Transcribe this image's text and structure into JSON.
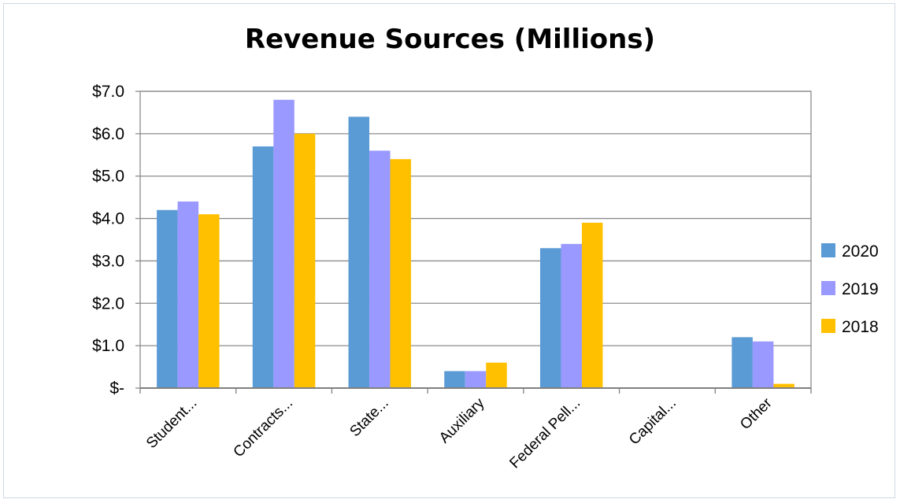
{
  "chart_data": {
    "type": "bar",
    "title": "Revenue Sources (Millions)",
    "categories": [
      "Student...",
      "Contracts...",
      "State...",
      "Auxiliary",
      "Federal Pell...",
      "Capital...",
      "Other"
    ],
    "series": [
      {
        "name": "2020",
        "color": "#5b9bd5",
        "values": [
          4.2,
          5.7,
          6.4,
          0.4,
          3.3,
          0.0,
          1.2
        ]
      },
      {
        "name": "2019",
        "color": "#9999ff",
        "values": [
          4.4,
          6.8,
          5.6,
          0.4,
          3.4,
          0.0,
          1.1
        ]
      },
      {
        "name": "2018",
        "color": "#ffc000",
        "values": [
          4.1,
          6.0,
          5.4,
          0.6,
          3.9,
          0.0,
          0.1
        ]
      }
    ],
    "ylim": [
      0,
      7
    ],
    "yticks": [
      0,
      1,
      2,
      3,
      4,
      5,
      6,
      7
    ],
    "ytick_labels": [
      "$-",
      "$1.0",
      "$2.0",
      "$3.0",
      "$4.0",
      "$5.0",
      "$6.0",
      "$7.0"
    ],
    "xlabel": "",
    "ylabel": "",
    "grid": true,
    "legend_position": "right"
  }
}
